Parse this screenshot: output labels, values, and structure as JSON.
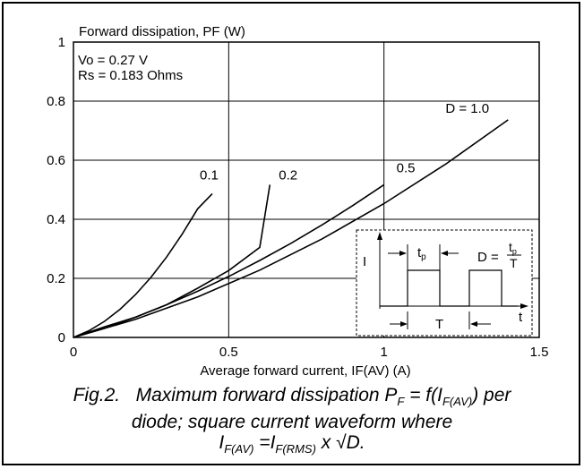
{
  "chart_data": {
    "type": "line",
    "title": "Forward dissipation, PF (W)",
    "ylabel": "Forward dissipation, PF (W)",
    "xlabel": "Average forward current, IF(AV) (A)",
    "xlim": [
      0,
      1.5
    ],
    "ylim": [
      0,
      1
    ],
    "xticks": [
      "0",
      "0.5",
      "1",
      "1.5"
    ],
    "yticks": [
      "0",
      "0.2",
      "0.4",
      "0.6",
      "0.8",
      "1"
    ],
    "annotations": [
      "Vo = 0.27 V",
      "Rs = 0.183 Ohms"
    ],
    "grid": true,
    "series": [
      {
        "name": "0.1",
        "x": [
          0,
          0.05,
          0.1,
          0.15,
          0.2,
          0.25,
          0.3,
          0.35,
          0.4,
          0.4472
        ],
        "y": [
          0,
          0.0227,
          0.0545,
          0.0953,
          0.1453,
          0.2042,
          0.2722,
          0.3493,
          0.4354,
          0.4867
        ]
      },
      {
        "name": "0.2",
        "x": [
          0,
          0.1,
          0.2,
          0.3,
          0.4,
          0.5,
          0.6,
          0.6325
        ],
        "y": [
          0,
          0.0362,
          0.0686,
          0.1105,
          0.1666,
          0.2265,
          0.3048,
          0.5171
        ]
      },
      {
        "name": "0.5",
        "x": [
          0,
          0.1,
          0.2,
          0.3,
          0.4,
          0.5,
          0.6,
          0.7,
          0.8,
          0.9,
          1.0
        ],
        "y": [
          0,
          0.0307,
          0.0686,
          0.1105,
          0.1565,
          0.2065,
          0.2605,
          0.3186,
          0.3807,
          0.4468,
          0.517
        ]
      },
      {
        "name": "D = 1.0",
        "x": [
          0,
          0.2,
          0.4,
          0.6,
          0.8,
          1.0,
          1.2,
          1.4
        ],
        "y": [
          0,
          0.0613,
          0.1373,
          0.2279,
          0.3331,
          0.453,
          0.5875,
          0.7367
        ]
      }
    ]
  },
  "inset": {
    "i_label": "I",
    "tp_label": "t",
    "tp_sub": "p",
    "d_label": "D =",
    "frac_num": "t",
    "frac_num_sub": "p",
    "frac_den": "T",
    "T_label": "T",
    "t_axis": "t"
  },
  "caption": {
    "line1_a": "Fig.2.   Maximum forward dissipation P",
    "line1_sub1": "F",
    "line1_b": " = f(I",
    "line1_sub2": "F(AV)",
    "line1_c": ") per",
    "line2": "diode; square current waveform where",
    "line3_a": "I",
    "line3_sub1": "F(AV)",
    "line3_b": " =I",
    "line3_sub2": "F(RMS)",
    "line3_c": " x √D."
  }
}
